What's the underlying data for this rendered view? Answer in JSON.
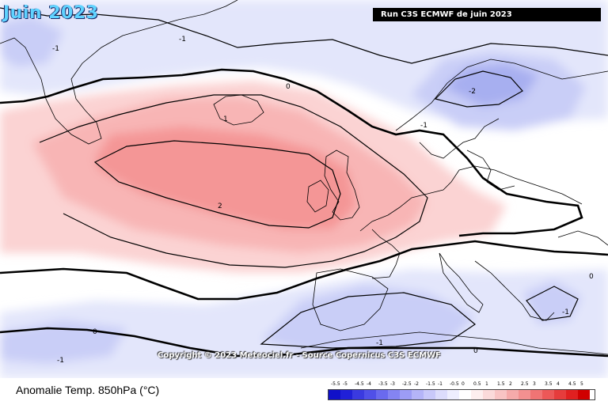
{
  "header": {
    "month_title": "Juin 2023",
    "run_label": "Run C3S ECMWF de juin 2023"
  },
  "map": {
    "copyright": "Copyright © 2023 Meteociel.fr - Source Copernicus C3S ECMWF",
    "contour_labels": [
      {
        "text": "-1",
        "value": -1
      },
      {
        "text": "-1",
        "value": -1
      },
      {
        "text": "0",
        "value": 0
      },
      {
        "text": "-2",
        "value": -2
      },
      {
        "text": "1",
        "value": 1
      },
      {
        "text": "-1",
        "value": -1
      },
      {
        "text": "2",
        "value": 2
      },
      {
        "text": "0",
        "value": 0
      },
      {
        "text": "0",
        "value": 0
      },
      {
        "text": "-1",
        "value": -1
      },
      {
        "text": "0",
        "value": 0
      },
      {
        "text": "-1",
        "value": -1
      },
      {
        "text": "-1",
        "value": -1
      }
    ],
    "colors": {
      "warm_1": "#fbd3d3",
      "warm_2": "#f8b5b5",
      "warm_3": "#f49696",
      "cold_1": "#e3e6fb",
      "cold_2": "#c9cef7",
      "cold_3": "#a7aff0",
      "coast": "#000000"
    }
  },
  "footer": {
    "variable_title": "Anomalie Temp. 850hPa (°C)"
  },
  "legend": {
    "labels": [
      "-5.5",
      "-5",
      "-4.5",
      "-4",
      "-3.5",
      "-3",
      "-2.5",
      "-2",
      "-1.5",
      "-1",
      "-0.5",
      "0",
      "0.5",
      "1",
      "1.5",
      "2",
      "2.5",
      "3",
      "3.5",
      "4",
      "4.5",
      "5"
    ],
    "colors": [
      "#1010c8",
      "#2020d8",
      "#3a3ae0",
      "#5050e8",
      "#6a6aee",
      "#8484f2",
      "#9c9cf5",
      "#b4b4f8",
      "#c8c8fa",
      "#dcdcfc",
      "#eeeefe",
      "#ffffff",
      "#fdeeee",
      "#fbdada",
      "#f9c4c4",
      "#f6aaaa",
      "#f39090",
      "#f07474",
      "#ec5858",
      "#e63c3c",
      "#e02020",
      "#d00000"
    ]
  }
}
